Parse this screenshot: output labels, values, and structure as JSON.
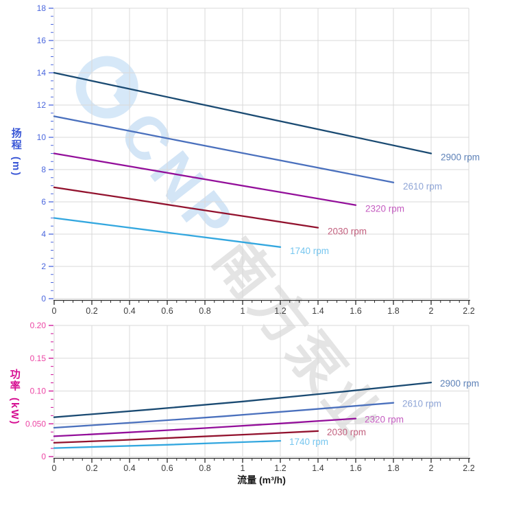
{
  "page": {
    "background": "#ffffff"
  },
  "watermark": {
    "cnp_text": "CNP",
    "chinese_text": "南方泵业",
    "cnp_color": "#d3e5f6",
    "chinese_color": "#e4e4e4"
  },
  "grid_color": "#d9d9d9",
  "x_axis": {
    "title": "流量 (m³/h)",
    "min": 0,
    "max": 2.2,
    "major_step": 0.2,
    "minor_step": 0.05,
    "tick_labels": [
      "0",
      "0.2",
      "0.4",
      "0.6",
      "0.8",
      "1",
      "1.2",
      "1.4",
      "1.6",
      "1.8",
      "2",
      "2.2"
    ],
    "tick_label_color": "#3d3d3d",
    "axis_color": "#2b2b2b"
  },
  "head_axis": {
    "name_chars": "扬程",
    "unit": "(m)",
    "min": 0,
    "max": 18,
    "major_step": 2,
    "minor_step": 0.5,
    "tick_labels": [
      "0",
      "2",
      "4",
      "6",
      "8",
      "10",
      "12",
      "14",
      "16",
      "18"
    ],
    "title_color": "#3a57d6",
    "num_color": "#4a66dd",
    "tick_color": "#4a66dd"
  },
  "power_axis": {
    "name_chars": "功率",
    "unit": "(kW)",
    "min": 0,
    "max": 0.2,
    "major_step": 0.05,
    "minor_step": 0.0125,
    "tick_labels": [
      "0",
      "0.050",
      "0.10",
      "0.15",
      "0.20"
    ],
    "title_color": "#d60f92",
    "num_color": "#ec45a4",
    "tick_color": "#cc0d94"
  },
  "chart_data": [
    {
      "id": "head",
      "type": "line",
      "title": "",
      "xlabel": "流量 (m³/h)",
      "ylabel": "扬程 (m)",
      "xlim": [
        0,
        2.2
      ],
      "ylim": [
        0,
        18
      ],
      "grid": true,
      "legend_position": "end-of-line labels",
      "series": [
        {
          "name": "2900 rpm",
          "line_color": "#1a4a72",
          "label_color": "#5e82b8",
          "points": [
            [
              0,
              14.0
            ],
            [
              0.5,
              12.75
            ],
            [
              1.0,
              11.5
            ],
            [
              1.5,
              10.25
            ],
            [
              2.0,
              9.0
            ]
          ]
        },
        {
          "name": "2610 rpm",
          "line_color": "#4a70bd",
          "label_color": "#8fa5d6",
          "points": [
            [
              0,
              11.3
            ],
            [
              0.45,
              10.28
            ],
            [
              0.9,
              9.25
            ],
            [
              1.35,
              8.23
            ],
            [
              1.8,
              7.2
            ]
          ]
        },
        {
          "name": "2320 rpm",
          "line_color": "#930f9a",
          "label_color": "#c45cc0",
          "points": [
            [
              0,
              9.0
            ],
            [
              0.4,
              8.2
            ],
            [
              0.8,
              7.4
            ],
            [
              1.2,
              6.6
            ],
            [
              1.6,
              5.8
            ]
          ]
        },
        {
          "name": "2030 rpm",
          "line_color": "#92122e",
          "label_color": "#c2607e",
          "points": [
            [
              0,
              6.9
            ],
            [
              0.35,
              6.28
            ],
            [
              0.7,
              5.65
            ],
            [
              1.05,
              5.03
            ],
            [
              1.4,
              4.4
            ]
          ]
        },
        {
          "name": "1740 rpm",
          "line_color": "#33a7df",
          "label_color": "#76c6ef",
          "points": [
            [
              0,
              5.0
            ],
            [
              0.3,
              4.55
            ],
            [
              0.6,
              4.1
            ],
            [
              0.9,
              3.65
            ],
            [
              1.2,
              3.2
            ]
          ]
        }
      ]
    },
    {
      "id": "power",
      "type": "line",
      "title": "",
      "xlabel": "流量 (m³/h)",
      "ylabel": "功率 (kW)",
      "xlim": [
        0,
        2.2
      ],
      "ylim": [
        0,
        0.2
      ],
      "grid": true,
      "legend_position": "end-of-line labels",
      "series": [
        {
          "name": "2900 rpm",
          "line_color": "#1a4a72",
          "label_color": "#5e82b8",
          "points": [
            [
              0,
              0.06
            ],
            [
              0.5,
              0.0715
            ],
            [
              1.0,
              0.084
            ],
            [
              1.5,
              0.098
            ],
            [
              2.0,
              0.113
            ]
          ]
        },
        {
          "name": "2610 rpm",
          "line_color": "#4a70bd",
          "label_color": "#8fa5d6",
          "points": [
            [
              0,
              0.044
            ],
            [
              0.45,
              0.0525
            ],
            [
              0.9,
              0.0615
            ],
            [
              1.35,
              0.0715
            ],
            [
              1.8,
              0.082
            ]
          ]
        },
        {
          "name": "2320 rpm",
          "line_color": "#930f9a",
          "label_color": "#c45cc0",
          "points": [
            [
              0,
              0.031
            ],
            [
              0.4,
              0.037
            ],
            [
              0.8,
              0.0435
            ],
            [
              1.2,
              0.0505
            ],
            [
              1.6,
              0.058
            ]
          ]
        },
        {
          "name": "2030 rpm",
          "line_color": "#92122e",
          "label_color": "#c2607e",
          "points": [
            [
              0,
              0.021
            ],
            [
              0.35,
              0.025
            ],
            [
              0.7,
              0.0295
            ],
            [
              1.05,
              0.034
            ],
            [
              1.4,
              0.039
            ]
          ]
        },
        {
          "name": "1740 rpm",
          "line_color": "#33a7df",
          "label_color": "#76c6ef",
          "points": [
            [
              0,
              0.013
            ],
            [
              0.3,
              0.0155
            ],
            [
              0.6,
              0.018
            ],
            [
              0.9,
              0.021
            ],
            [
              1.2,
              0.024
            ]
          ]
        }
      ]
    }
  ]
}
